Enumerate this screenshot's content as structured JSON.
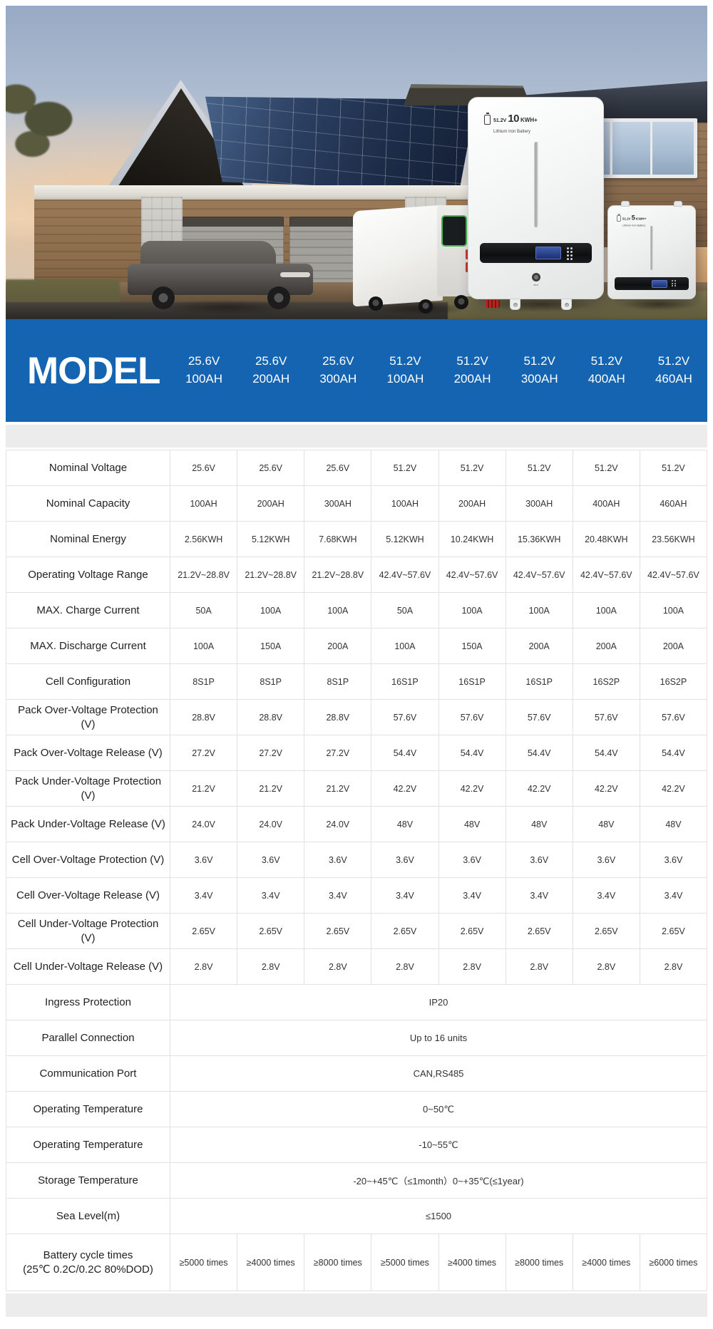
{
  "hero": {
    "main_battery_label": {
      "voltage": "51.2V",
      "energy_value": "10",
      "energy_unit": "KWH+",
      "subtitle": "Lithium Iron Battery"
    },
    "right_battery_label": {
      "voltage": "51.2V",
      "energy_value": "5",
      "energy_unit": "KWH+",
      "subtitle": "Lithium Iron Battery"
    }
  },
  "model_header": {
    "title": "MODEL",
    "columns": [
      {
        "voltage": "25.6V",
        "capacity": "100AH"
      },
      {
        "voltage": "25.6V",
        "capacity": "200AH"
      },
      {
        "voltage": "25.6V",
        "capacity": "300AH"
      },
      {
        "voltage": "51.2V",
        "capacity": "100AH"
      },
      {
        "voltage": "51.2V",
        "capacity": "200AH"
      },
      {
        "voltage": "51.2V",
        "capacity": "300AH"
      },
      {
        "voltage": "51.2V",
        "capacity": "400AH"
      },
      {
        "voltage": "51.2V",
        "capacity": "460AH"
      }
    ]
  },
  "spec_table": {
    "rows": [
      {
        "label": "Nominal Voltage",
        "values": [
          "25.6V",
          "25.6V",
          "25.6V",
          "51.2V",
          "51.2V",
          "51.2V",
          "51.2V",
          "51.2V"
        ]
      },
      {
        "label": "Nominal Capacity",
        "values": [
          "100AH",
          "200AH",
          "300AH",
          "100AH",
          "200AH",
          "300AH",
          "400AH",
          "460AH"
        ]
      },
      {
        "label": "Nominal Energy",
        "values": [
          "2.56KWH",
          "5.12KWH",
          "7.68KWH",
          "5.12KWH",
          "10.24KWH",
          "15.36KWH",
          "20.48KWH",
          "23.56KWH"
        ]
      },
      {
        "label": "Operating Voltage Range",
        "values": [
          "21.2V~28.8V",
          "21.2V~28.8V",
          "21.2V~28.8V",
          "42.4V~57.6V",
          "42.4V~57.6V",
          "42.4V~57.6V",
          "42.4V~57.6V",
          "42.4V~57.6V"
        ]
      },
      {
        "label": "MAX. Charge Current",
        "values": [
          "50A",
          "100A",
          "100A",
          "50A",
          "100A",
          "100A",
          "100A",
          "100A"
        ]
      },
      {
        "label": "MAX. Discharge Current",
        "values": [
          "100A",
          "150A",
          "200A",
          "100A",
          "150A",
          "200A",
          "200A",
          "200A"
        ]
      },
      {
        "label": "Cell Configuration",
        "values": [
          "8S1P",
          "8S1P",
          "8S1P",
          "16S1P",
          "16S1P",
          "16S1P",
          "16S2P",
          "16S2P"
        ]
      },
      {
        "label": "Pack Over-Voltage Protection (V)",
        "values": [
          "28.8V",
          "28.8V",
          "28.8V",
          "57.6V",
          "57.6V",
          "57.6V",
          "57.6V",
          "57.6V"
        ]
      },
      {
        "label": "Pack Over-Voltage Release (V)",
        "values": [
          "27.2V",
          "27.2V",
          "27.2V",
          "54.4V",
          "54.4V",
          "54.4V",
          "54.4V",
          "54.4V"
        ]
      },
      {
        "label": "Pack Under-Voltage Protection (V)",
        "values": [
          "21.2V",
          "21.2V",
          "21.2V",
          "42.2V",
          "42.2V",
          "42.2V",
          "42.2V",
          "42.2V"
        ]
      },
      {
        "label": "Pack Under-Voltage Release (V)",
        "values": [
          "24.0V",
          "24.0V",
          "24.0V",
          "48V",
          "48V",
          "48V",
          "48V",
          "48V"
        ]
      },
      {
        "label": "Cell Over-Voltage Protection (V)",
        "values": [
          "3.6V",
          "3.6V",
          "3.6V",
          "3.6V",
          "3.6V",
          "3.6V",
          "3.6V",
          "3.6V"
        ]
      },
      {
        "label": "Cell Over-Voltage Release (V)",
        "values": [
          "3.4V",
          "3.4V",
          "3.4V",
          "3.4V",
          "3.4V",
          "3.4V",
          "3.4V",
          "3.4V"
        ]
      },
      {
        "label": "Cell Under-Voltage Protection (V)",
        "values": [
          "2.65V",
          "2.65V",
          "2.65V",
          "2.65V",
          "2.65V",
          "2.65V",
          "2.65V",
          "2.65V"
        ]
      },
      {
        "label": "Cell Under-Voltage Release (V)",
        "values": [
          "2.8V",
          "2.8V",
          "2.8V",
          "2.8V",
          "2.8V",
          "2.8V",
          "2.8V",
          "2.8V"
        ]
      },
      {
        "label": "Ingress Protection",
        "span_value": "IP20"
      },
      {
        "label": "Parallel Connection",
        "span_value": "Up to 16 units"
      },
      {
        "label": "Communication Port",
        "span_value": "CAN,RS485"
      },
      {
        "label": "Operating Temperature",
        "span_value": "0~50℃"
      },
      {
        "label": "Operating Temperature",
        "span_value": "-10~55℃"
      },
      {
        "label": "Storage Temperature",
        "span_value": "-20~+45℃（≤1month）0~+35℃(≤1year)"
      },
      {
        "label": "Sea Level(m)",
        "span_value": "≤1500"
      },
      {
        "label": "Battery cycle times",
        "label2": "(25℃ 0.2C/0.2C 80%DOD)",
        "values": [
          "≥5000 times",
          "≥4000 times",
          "≥8000 times",
          "≥5000 times",
          "≥4000 times",
          "≥8000 times",
          "≥4000 times",
          "≥6000 times"
        ]
      }
    ]
  },
  "colors": {
    "accent_blue": "#1564b2",
    "strip_gray": "#ececec",
    "table_border": "#e1e1e1"
  }
}
